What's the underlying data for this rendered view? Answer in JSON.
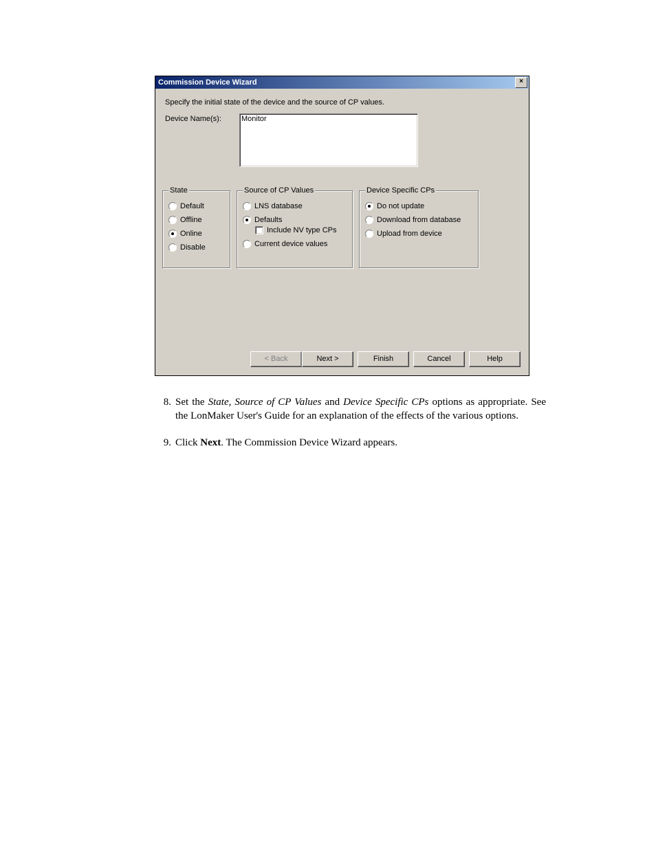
{
  "window": {
    "title": "Commission Device Wizard",
    "close_glyph": "×",
    "intro": "Specify the initial state of the device and the source of CP values.",
    "device_name_label": "Device Name(s):",
    "device_name_value": "Monitor"
  },
  "state": {
    "legend": "State",
    "options": [
      {
        "label": "Default",
        "selected": false
      },
      {
        "label": "Offline",
        "selected": false
      },
      {
        "label": "Online",
        "selected": true
      },
      {
        "label": "Disable",
        "selected": false
      }
    ]
  },
  "source": {
    "legend": "Source of CP Values",
    "options": [
      {
        "label": "LNS database",
        "selected": false
      },
      {
        "label": "Defaults",
        "selected": true
      }
    ],
    "checkbox": {
      "label": "Include NV type CPs",
      "checked": false
    },
    "options_after": [
      {
        "label": "Current device values",
        "selected": false
      }
    ]
  },
  "device_specific": {
    "legend": "Device Specific CPs",
    "options": [
      {
        "label": "Do not update",
        "selected": true
      },
      {
        "label": "Download from database",
        "selected": false
      },
      {
        "label": "Upload from device",
        "selected": false
      }
    ]
  },
  "buttons": {
    "back": "< Back",
    "next": "Next >",
    "finish": "Finish",
    "cancel": "Cancel",
    "help": "Help"
  },
  "instructions": [
    {
      "num": "8.",
      "html": "Set the <em>State</em>, <em>Source of CP Values</em> and <em>Device Specific CPs</em> options as appropriate.  See the LonMaker User's Guide for an explanation of the effects of the various options."
    },
    {
      "num": "9.",
      "html": "Click <strong>Next</strong>.  The Commission Device Wizard appears."
    }
  ]
}
